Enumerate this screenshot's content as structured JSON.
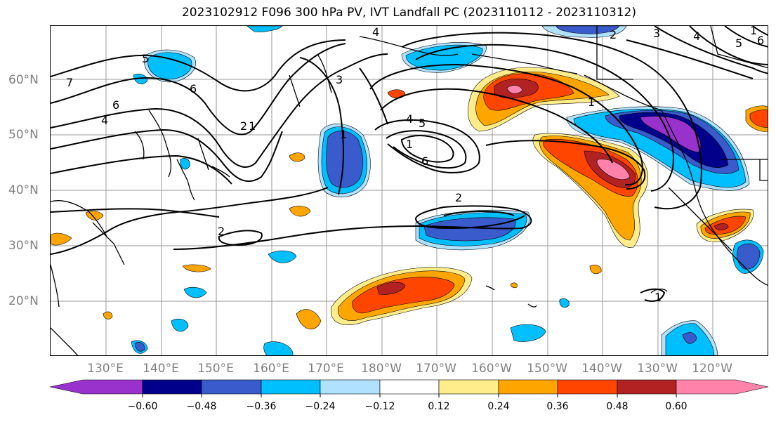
{
  "title": "2023102912 F096 300 hPa PV, IVT Landfall PC (2023110112 - 2023110312)",
  "lat_labels": [
    "60°N",
    "50°N",
    "40°N",
    "30°N",
    "20°N"
  ],
  "lon_labels": [
    "130°E",
    "140°E",
    "150°E",
    "160°E",
    "170°E",
    "180°W",
    "170°W",
    "160°W",
    "150°W",
    "140°W",
    "130°W",
    "120°W"
  ],
  "colorbar": {
    "ticks": [
      "−0.60",
      "−0.48",
      "−0.36",
      "−0.24",
      "−0.12",
      "0.12",
      "0.24",
      "0.36",
      "0.48",
      "0.60"
    ],
    "colors": [
      "#9932cc",
      "#00008b",
      "#3a5bcc",
      "#00bfff",
      "#b0e2ff",
      "#ffffff",
      "#ffec8b",
      "#ffa500",
      "#ff4500",
      "#b22222",
      "#ff82ab"
    ]
  },
  "contour_labels": [
    "7",
    "6",
    "6",
    "4",
    "5",
    "2",
    "1",
    "1",
    "4",
    "3",
    "4",
    "5",
    "1",
    "6",
    "2",
    "2",
    "1",
    "2",
    "3",
    "4",
    "5",
    "6",
    "1",
    "1"
  ],
  "colors": {
    "purple": "#9932cc",
    "navy": "#00008b",
    "blue": "#3a5bcc",
    "cyan": "#00bfff",
    "lightblue": "#b0e2ff",
    "yellow": "#ffec8b",
    "orange": "#ffa500",
    "redorange": "#ff4500",
    "darkred": "#b22222",
    "pink": "#ff82ab"
  }
}
